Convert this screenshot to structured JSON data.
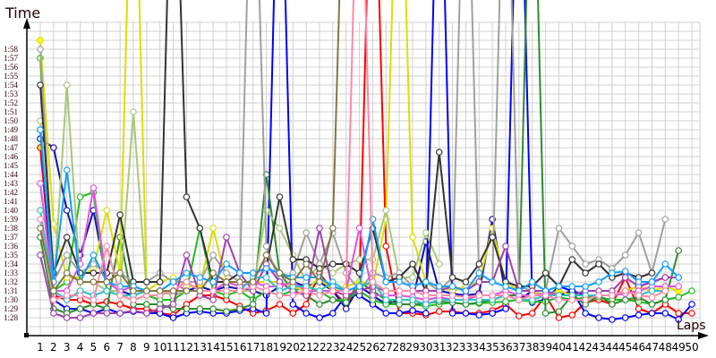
{
  "chart_data": {
    "type": "line",
    "xlabel": "Laps",
    "ylabel": "Time",
    "grid": true,
    "legend": "none",
    "x": [
      1,
      2,
      3,
      4,
      5,
      6,
      7,
      8,
      9,
      10,
      11,
      12,
      13,
      14,
      15,
      16,
      17,
      18,
      19,
      20,
      21,
      22,
      23,
      24,
      25,
      26,
      27,
      28,
      29,
      30,
      31,
      32,
      33,
      34,
      35,
      36,
      37,
      38,
      39,
      40,
      41,
      42,
      43,
      44,
      45,
      46,
      47,
      48,
      49,
      50
    ],
    "y_ticks": [
      "1:28",
      "1:29",
      "1:30",
      "1:31",
      "1:32",
      "1:33",
      "1:34",
      "1:35",
      "1:36",
      "1:37",
      "1:38",
      "1:39",
      "1:40",
      "1:41",
      "1:42",
      "1:43",
      "1:44",
      "1:45",
      "1:46",
      "1:47",
      "1:48",
      "1:49",
      "1:50",
      "1:51",
      "1:52",
      "1:53",
      "1:54",
      "1:55",
      "1:56",
      "1:57",
      "1:58"
    ],
    "ylim": [
      "1:27",
      "2:01"
    ],
    "series": [
      {
        "color": "#ff0000",
        "values": [
          "1:47",
          "1:30.5",
          "1:30",
          "1:30",
          "1:29.5",
          "1:29.8",
          "1:29.5",
          "1:29",
          "1:29",
          "1:28.5",
          "1:28.3",
          "1:29.5",
          "1:30.5",
          "1:30.5",
          "1:30",
          "1:29.3",
          "1:28.5",
          "1:28.8",
          "1:29.5",
          "1:28.5",
          "1:29.5",
          "1:33",
          "1:31",
          "1:29.5",
          "1:31.5",
          "2:30",
          "1:36",
          "1:28.5",
          "1:28.5",
          "1:28.3",
          "1:28.7",
          "1:28.7",
          "1:28.5",
          "1:28.5",
          "1:28.8",
          "1:29.5",
          "1:28.2",
          "1:28.5",
          "1:30.5",
          "1:28",
          "1:28.3",
          "1:29.7",
          "1:30",
          "1:29.5",
          "1:32.5",
          "1:29",
          "1:28.5",
          "1:29.5",
          "1:28.5",
          "1:28.5"
        ]
      },
      {
        "color": "#1010b0",
        "values": [
          "1:48",
          "1:47",
          "1:40",
          "1:35",
          "1:40",
          "1:32",
          "1:31",
          "1:30.5",
          "1:31",
          "1:31",
          "1:30.5",
          "1:31",
          "1:31.5",
          "1:31",
          "1:31.5",
          "1:31.2",
          "1:31",
          "1:30.5",
          "1:31.5",
          "1:32",
          "1:31.5",
          "1:32",
          "1:31",
          "1:29",
          "1:31.5",
          "1:30.5",
          "1:29.5",
          "1:30",
          "1:30",
          "1:36.5",
          "1:31",
          "1:30.7",
          "1:30.5",
          "1:30.7",
          "1:39",
          "1:30.5",
          "1:30",
          "1:31",
          "1:30.5",
          "1:30.5",
          "1:31",
          "1:30.5",
          "1:30.5",
          "1:30.5",
          "1:31",
          "1:31.5",
          "1:32",
          "1:32.5",
          null,
          null
        ]
      },
      {
        "color": "#0000ff",
        "values": [
          "1:49",
          "1:30",
          "1:29",
          "1:29",
          "1:28.5",
          "1:29",
          "1:28.5",
          "1:28.7",
          "1:28.5",
          "1:28.5",
          "1:28",
          "1:28.5",
          "1:28.7",
          "1:28.5",
          "1:28.5",
          "1:28.8",
          "1:29",
          "1:28.5",
          "2:30",
          "1:29.5",
          "1:28.5",
          "1:28",
          "1:28.5",
          "1:30.5",
          "1:30.5",
          "1:29.5",
          "1:28.5",
          "1:28.5",
          "1:28.8",
          "1:28.5",
          "2:30",
          "1:28.5",
          "1:28.5",
          "1:28.3",
          "1:28.5",
          "1:29",
          "2:30",
          "1:29.7",
          "1:30",
          "1:31.5",
          "1:31",
          "1:28.5",
          "1:28",
          "1:27.8",
          "1:28",
          "1:28.3",
          "1:28.5",
          "1:28.5",
          "1:27.8",
          "1:29.5"
        ]
      },
      {
        "color": "#22bb22",
        "values": [
          "1:57",
          "1:31",
          "1:32",
          "1:41.5",
          "1:42",
          "1:31",
          "1:30.5",
          "1:30",
          "1:30.5",
          "1:30",
          "1:30",
          "1:31",
          "1:38",
          "1:31",
          "1:30.5",
          "1:31",
          "1:30",
          "1:31",
          "1:30.5",
          "1:31",
          "1:31.5",
          "1:31",
          "1:30",
          "1:30",
          "1:31",
          "1:30",
          "1:29.5",
          "1:29.5",
          "1:29.5",
          "1:29.3",
          "1:29.5",
          "1:29.7",
          "1:29.5",
          "1:29.6",
          "1:29.7",
          "1:29.8",
          "1:30",
          "1:29.8",
          "1:29.8",
          "1:30.3",
          "1:30",
          "1:30.3",
          "1:30.3",
          "1:30",
          "1:30",
          "1:29.8",
          "1:29.5",
          "1:30",
          "1:30.3",
          "1:31"
        ]
      },
      {
        "color": "#2e8b2e",
        "values": [
          "1:37",
          "1:29",
          "1:28.5",
          "1:29",
          "1:29.5",
          "1:29",
          "1:37",
          "1:29.5",
          "1:29.5",
          "1:29.5",
          "1:29",
          "1:29",
          "1:29",
          "1:29",
          "1:28.7",
          "1:29",
          "1:29.5",
          "1:44",
          "1:33",
          "1:31",
          "1:30.5",
          "1:29.5",
          "1:30",
          "1:29.7",
          "1:32",
          "1:31",
          "1:30",
          "1:29.5",
          "1:29.5",
          "1:29.6",
          "1:29.8",
          "1:29.7",
          "1:29.5",
          "1:29.7",
          "1:30",
          "1:30.5",
          "1:30.5",
          "2:30",
          "1:28.5",
          "1:28.7",
          "1:30.5",
          "1:29.5",
          "1:30.5",
          "1:29.5",
          "1:30",
          "1:30.3",
          "1:29.5",
          "1:30",
          "1:35.5",
          null
        ]
      },
      {
        "color": "#dddd00",
        "values": [
          "1:59",
          "1:38.5",
          "1:32.5",
          "1:32.5",
          "1:33.5",
          "1:40",
          "1:33",
          "2:30",
          "1:31",
          "1:32",
          "1:32.5",
          "1:31.5",
          "1:31.5",
          "1:38",
          "1:32",
          "1:31.5",
          "1:32",
          "1:32",
          "1:32",
          "1:31.5",
          "1:31",
          "1:32.5",
          "1:31",
          "1:31.5",
          "1:32",
          "1:31.5",
          "1:39",
          "2:30",
          "1:37",
          "1:32",
          "1:31.5",
          "1:31",
          "1:31.5",
          "1:32",
          "1:38",
          "1:32",
          "1:31",
          "1:31",
          "1:30.5",
          "1:31",
          "1:30.5",
          "1:30.5",
          "1:30.5",
          "1:30.5",
          "1:31",
          "1:31.5",
          "1:31",
          "1:31.5",
          "1:31",
          null
        ]
      },
      {
        "color": "#a8c878",
        "values": [
          "1:50",
          "1:31",
          "1:54",
          "1:32",
          "1:32",
          "1:31",
          "1:31",
          "1:51",
          "1:31",
          "1:31",
          "1:30.5",
          "1:31",
          "1:31",
          "1:31",
          "1:31",
          "1:31",
          "1:31",
          "1:40",
          "1:38",
          "1:35",
          "1:32",
          "1:34",
          "1:33",
          "1:34",
          "1:34.5",
          "1:34.5",
          "1:40",
          "1:32.5",
          "1:32.5",
          "1:37.5",
          "1:34",
          null,
          null,
          null,
          null,
          null,
          null,
          null,
          null,
          null,
          null,
          null,
          null,
          null,
          null,
          null,
          null,
          null,
          null,
          null
        ]
      },
      {
        "color": "#a0a0a0",
        "values": [
          "1:58",
          "1:32",
          "1:35",
          "1:33",
          "1:34",
          "1:33",
          "1:33",
          "1:32",
          "1:32",
          "1:33",
          "1:32",
          "1:32",
          "1:32",
          "1:35",
          "1:33",
          "1:32",
          "2:30",
          "1:36",
          "1:32",
          "1:33",
          "1:37.5",
          "1:34",
          "1:37.5",
          "1:33",
          "1:31",
          "1:33",
          "1:32.5",
          "1:33",
          "1:31.5",
          "1:32",
          "1:31",
          "1:32.5",
          "2:30",
          "1:32",
          "1:32",
          "2:30",
          "1:31.5",
          "1:31",
          "1:31",
          "1:38",
          "1:36",
          "1:34",
          "1:34.5",
          "1:33.5",
          "1:35",
          "1:37.5",
          "1:33",
          "1:39",
          null,
          null
        ]
      },
      {
        "color": "#333333",
        "values": [
          "1:54",
          "1:33",
          "1:37",
          "1:33",
          "1:33",
          "1:33",
          "1:39.5",
          "1:32",
          "1:32",
          "1:32",
          "2:30",
          "1:41.5",
          "1:38",
          "1:32",
          "1:32",
          "1:33",
          "1:33",
          "1:33.5",
          "1:41.5",
          "1:34.5",
          "1:34.5",
          "1:33.5",
          "1:34",
          "1:34",
          "1:33",
          "1:38",
          "1:32",
          "1:32.5",
          "1:34",
          "1:31",
          "1:46.5",
          "1:32.5",
          "1:32",
          "1:34",
          "1:37",
          "1:32",
          "1:31.5",
          "1:31.5",
          "1:33",
          "1:31.5",
          "1:34.5",
          "1:33",
          "1:34",
          "1:32.5",
          "1:33",
          "1:32.5",
          "1:33",
          null,
          null,
          null
        ]
      },
      {
        "color": "#a040b0",
        "values": [
          "1:35",
          "1:28.5",
          "1:28",
          "1:28",
          "1:28.5",
          "1:28.5",
          "1:28.5",
          "1:28.8",
          "1:28.5",
          "1:29",
          "1:29.5",
          "1:35",
          "1:30.5",
          "1:30",
          "1:37",
          "1:33",
          "1:31",
          "1:34",
          "1:32",
          "1:31",
          "1:30.5",
          "1:38",
          "1:31",
          "1:30.5",
          "1:31",
          "1:31.5",
          "1:31",
          "1:31",
          "1:31",
          "1:31",
          "1:31",
          "1:31.5",
          "1:31",
          "1:32",
          "1:32",
          "1:36",
          "1:31",
          "1:31",
          "1:31",
          "1:30.5",
          "1:30.5",
          "1:31",
          "1:31",
          "1:31",
          "1:32.5",
          "1:31.5",
          "1:32",
          "1:32.5",
          "1:32.5",
          null
        ]
      },
      {
        "color": "#dd55dd",
        "values": [
          "1:43",
          "1:31",
          "1:31",
          "1:34",
          "1:42.5",
          "1:32",
          "1:31",
          "1:31.5",
          "1:31",
          "1:31",
          "1:32",
          "1:31",
          "1:31",
          "1:31",
          "1:32",
          "1:31.5",
          "1:32",
          "1:31.5",
          "1:31.5",
          "1:32",
          "1:31",
          "1:31",
          "1:31",
          "1:31",
          "1:38",
          "1:30.5",
          "1:30.5",
          "1:30.5",
          "1:30.3",
          "1:30",
          "1:30.3",
          "1:30",
          "1:30",
          "1:30.5",
          "1:30.5",
          "1:31",
          "1:30.5",
          "1:30.5",
          "1:30.7",
          "1:30.5",
          "1:30.5",
          "1:30.5",
          "1:30.5",
          "1:30.5",
          "1:30.7",
          "1:31",
          "1:31.5",
          "1:31.5",
          "1:31.5",
          null
        ]
      },
      {
        "color": "#30c0c0",
        "values": [
          "1:40",
          "1:31",
          "1:30",
          "1:31",
          "1:30.5",
          "1:31",
          "1:30.5",
          "1:30.5",
          "1:31",
          "1:31",
          "1:31",
          "1:31",
          "1:31",
          "1:31",
          "1:31",
          "1:31",
          "1:32.5",
          "1:32.5",
          "1:31",
          "1:31.5",
          "1:31.5",
          "1:31",
          "1:32",
          "1:31",
          "1:31.5",
          "1:32",
          "1:30",
          "1:30",
          "1:30",
          "1:29.5",
          "1:30",
          "1:30",
          "1:30",
          "1:30",
          "1:30",
          "1:30.5",
          "1:30",
          "1:30",
          "1:30.5",
          "1:30.5",
          "1:30.5",
          "1:30.5",
          "1:30.5",
          "1:30.5",
          "1:31",
          "1:30.5",
          "1:31",
          "1:31",
          null,
          null
        ]
      },
      {
        "color": "#10a0ff",
        "values": [
          "1:49",
          "1:32",
          "1:44.5",
          "1:32",
          "1:35",
          "1:32",
          "1:31.5",
          "1:31.5",
          "1:31",
          "1:31",
          "1:32",
          "1:33",
          "1:32.5",
          "1:32",
          "1:34",
          "1:33",
          "1:33",
          "1:33.5",
          "1:33",
          "1:32.5",
          "1:32.5",
          "1:32.5",
          "1:31.5",
          "1:31",
          "1:31.5",
          "1:39",
          "1:32",
          "1:32",
          "1:31.5",
          "1:32",
          "1:31.5",
          "1:31.5",
          "1:31",
          "1:33",
          "1:32",
          "1:31.5",
          "1:31",
          "1:32",
          "1:31",
          "1:31.5",
          "1:31.5",
          "1:31.5",
          "1:32",
          "1:33",
          "1:33.2",
          "1:32",
          "1:32",
          "1:34",
          "1:32.5",
          null
        ]
      },
      {
        "color": "#ff88aa",
        "values": [
          "1:39",
          "1:30",
          "1:30.5",
          "1:30.5",
          "1:30",
          "1:36",
          "1:30.5",
          "1:30",
          "1:30.5",
          "1:30.5",
          "1:31",
          "1:32",
          "1:31",
          "1:31",
          "1:31",
          "1:31",
          "1:31.5",
          "1:31",
          "1:30.5",
          "1:30.5",
          "1:31",
          "1:30.5",
          "1:31",
          "1:31",
          "2:30",
          "1:32",
          "1:31",
          "1:31",
          "1:31",
          "1:30.5",
          "1:30.5",
          "1:30.5",
          "1:30.3",
          "1:30.5",
          "1:30.5",
          "1:30.5",
          "1:30",
          "1:30.5",
          "1:30.5",
          "1:30",
          "1:30",
          "1:30",
          "1:30.5",
          "1:30.5",
          "1:31",
          "1:30.5",
          "1:30.3",
          "1:31",
          null,
          null
        ]
      },
      {
        "color": "#807840",
        "values": [
          "1:38",
          "1:31",
          "1:33",
          "1:32",
          "1:32",
          "1:32",
          "1:33",
          "1:31",
          "1:31",
          "1:31",
          "1:31",
          "1:31",
          "1:31",
          "1:33",
          "1:32",
          "1:32",
          "1:32",
          "1:35",
          "1:33",
          "1:32",
          "1:34",
          "1:32",
          "1:38",
          "2:30",
          null,
          null,
          null,
          null,
          null,
          null,
          null,
          null,
          null,
          null,
          null,
          null,
          null,
          null,
          null,
          null,
          null,
          null,
          null,
          null,
          null,
          null,
          null,
          null,
          null,
          null
        ]
      }
    ]
  }
}
